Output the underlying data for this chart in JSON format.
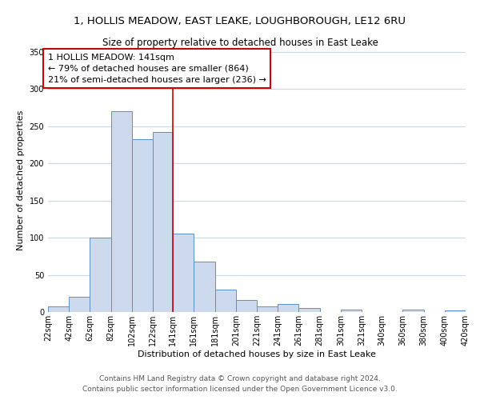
{
  "title": "1, HOLLIS MEADOW, EAST LEAKE, LOUGHBOROUGH, LE12 6RU",
  "subtitle": "Size of property relative to detached houses in East Leake",
  "xlabel": "Distribution of detached houses by size in East Leake",
  "ylabel": "Number of detached properties",
  "bin_edges": [
    22,
    42,
    62,
    82,
    102,
    122,
    141,
    161,
    181,
    201,
    221,
    241,
    261,
    281,
    301,
    321,
    340,
    360,
    380,
    400,
    420
  ],
  "bar_heights": [
    7,
    20,
    100,
    270,
    232,
    242,
    105,
    68,
    30,
    16,
    7,
    11,
    5,
    0,
    3,
    0,
    0,
    3,
    0,
    2
  ],
  "bar_color": "#cddaed",
  "bar_edge_color": "#5b8fc9",
  "vline_x": 141,
  "vline_color": "#cc0000",
  "annotation_title": "1 HOLLIS MEADOW: 141sqm",
  "annotation_line1": "← 79% of detached houses are smaller (864)",
  "annotation_line2": "21% of semi-detached houses are larger (236) →",
  "annotation_box_edge": "#cc0000",
  "tick_labels": [
    "22sqm",
    "42sqm",
    "62sqm",
    "82sqm",
    "102sqm",
    "122sqm",
    "141sqm",
    "161sqm",
    "181sqm",
    "201sqm",
    "221sqm",
    "241sqm",
    "261sqm",
    "281sqm",
    "301sqm",
    "321sqm",
    "340sqm",
    "360sqm",
    "380sqm",
    "400sqm",
    "420sqm"
  ],
  "ylim": [
    0,
    355
  ],
  "yticks": [
    0,
    50,
    100,
    150,
    200,
    250,
    300,
    350
  ],
  "footer1": "Contains HM Land Registry data © Crown copyright and database right 2024.",
  "footer2": "Contains public sector information licensed under the Open Government Licence v3.0.",
  "bg_color": "#ffffff",
  "grid_color": "#c8d8e8",
  "title_fontsize": 9.5,
  "subtitle_fontsize": 8.5,
  "axis_label_fontsize": 8,
  "tick_fontsize": 7,
  "annotation_fontsize": 8,
  "footer_fontsize": 6.5
}
